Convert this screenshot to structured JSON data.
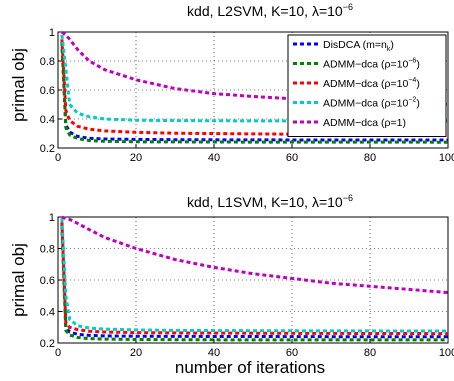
{
  "chart_data": [
    {
      "type": "line",
      "title": "kdd, L2SVM, K=10, λ=10",
      "title_sup": "−6",
      "xlabel": "",
      "ylabel": "primal obj",
      "xlim": [
        0,
        100
      ],
      "ylim": [
        0.2,
        1.0
      ],
      "xticks": [
        "0",
        "20",
        "40",
        "60",
        "80",
        "100"
      ],
      "yticks": [
        "0.2",
        "0.4",
        "0.6",
        "0.8",
        "1"
      ],
      "grid": true,
      "legend_position": "top-right",
      "series": [
        {
          "name": "DisDCA (m=n",
          "name_sub": "k",
          "name_tail": ")",
          "color": "#0000ff",
          "x": [
            1,
            2,
            3,
            5,
            8,
            12,
            20,
            30,
            50,
            70,
            100
          ],
          "values": [
            0.93,
            0.36,
            0.31,
            0.28,
            0.267,
            0.262,
            0.259,
            0.257,
            0.256,
            0.255,
            0.255
          ]
        },
        {
          "name": "ADMM−dca (ρ=10",
          "name_sup": "−6",
          "name_tail": ")",
          "color": "#008000",
          "x": [
            1,
            2,
            3,
            5,
            8,
            12,
            20,
            30,
            50,
            70,
            100
          ],
          "values": [
            0.93,
            0.34,
            0.29,
            0.265,
            0.252,
            0.246,
            0.243,
            0.242,
            0.241,
            0.241,
            0.24
          ]
        },
        {
          "name": "ADMM−dca (ρ=10",
          "name_sup": "−4",
          "name_tail": ")",
          "color": "#ff0000",
          "x": [
            1,
            2,
            3,
            5,
            8,
            12,
            20,
            30,
            50,
            70,
            100
          ],
          "values": [
            0.95,
            0.46,
            0.39,
            0.35,
            0.33,
            0.318,
            0.308,
            0.302,
            0.297,
            0.294,
            0.29
          ]
        },
        {
          "name": "ADMM−dca (ρ=10",
          "name_sup": "−2",
          "name_tail": ")",
          "color": "#00cccc",
          "x": [
            1,
            2,
            3,
            5,
            8,
            12,
            20,
            30,
            50,
            70,
            100
          ],
          "values": [
            0.98,
            0.75,
            0.5,
            0.44,
            0.415,
            0.4,
            0.392,
            0.389,
            0.387,
            0.386,
            0.385
          ]
        },
        {
          "name": "ADMM−dca (ρ=1)",
          "color": "#bf00bf",
          "x": [
            1,
            2,
            3,
            5,
            8,
            12,
            20,
            30,
            40,
            50,
            60,
            70,
            80,
            90,
            100
          ],
          "values": [
            1.0,
            0.98,
            0.95,
            0.88,
            0.8,
            0.74,
            0.67,
            0.61,
            0.575,
            0.555,
            0.54,
            0.53,
            0.52,
            0.51,
            0.5
          ]
        }
      ]
    },
    {
      "type": "line",
      "title": "kdd, L1SVM, K=10, λ=10",
      "title_sup": "−6",
      "xlabel": "number of iterations",
      "ylabel": "primal obj",
      "xlim": [
        0,
        100
      ],
      "ylim": [
        0.2,
        1.0
      ],
      "xticks": [
        "0",
        "20",
        "40",
        "60",
        "80",
        "100"
      ],
      "yticks": [
        "0.2",
        "0.4",
        "0.6",
        "0.8",
        "1"
      ],
      "grid": true,
      "series": [
        {
          "color": "#0000ff",
          "x": [
            1,
            2,
            3,
            5,
            8,
            12,
            20,
            30,
            50,
            70,
            100
          ],
          "values": [
            0.95,
            0.3,
            0.27,
            0.255,
            0.248,
            0.245,
            0.243,
            0.242,
            0.241,
            0.24,
            0.24
          ]
        },
        {
          "color": "#008000",
          "x": [
            1,
            2,
            3,
            5,
            8,
            12,
            20,
            30,
            50,
            70,
            100
          ],
          "values": [
            0.95,
            0.28,
            0.25,
            0.235,
            0.228,
            0.225,
            0.222,
            0.221,
            0.22,
            0.22,
            0.22
          ]
        },
        {
          "color": "#ff0000",
          "x": [
            1,
            2,
            3,
            5,
            8,
            12,
            20,
            30,
            50,
            70,
            100
          ],
          "values": [
            0.97,
            0.33,
            0.3,
            0.285,
            0.275,
            0.27,
            0.266,
            0.264,
            0.262,
            0.261,
            0.26
          ]
        },
        {
          "color": "#00cccc",
          "x": [
            1,
            2,
            3,
            5,
            8,
            12,
            20,
            30,
            50,
            70,
            100
          ],
          "values": [
            0.99,
            0.5,
            0.35,
            0.31,
            0.295,
            0.288,
            0.283,
            0.28,
            0.278,
            0.277,
            0.276
          ]
        },
        {
          "color": "#bf00bf",
          "x": [
            1,
            2,
            3,
            5,
            8,
            12,
            20,
            30,
            40,
            50,
            60,
            70,
            80,
            90,
            100
          ],
          "values": [
            1.0,
            0.99,
            0.985,
            0.96,
            0.92,
            0.87,
            0.8,
            0.73,
            0.68,
            0.64,
            0.61,
            0.58,
            0.56,
            0.54,
            0.52
          ]
        }
      ]
    }
  ]
}
